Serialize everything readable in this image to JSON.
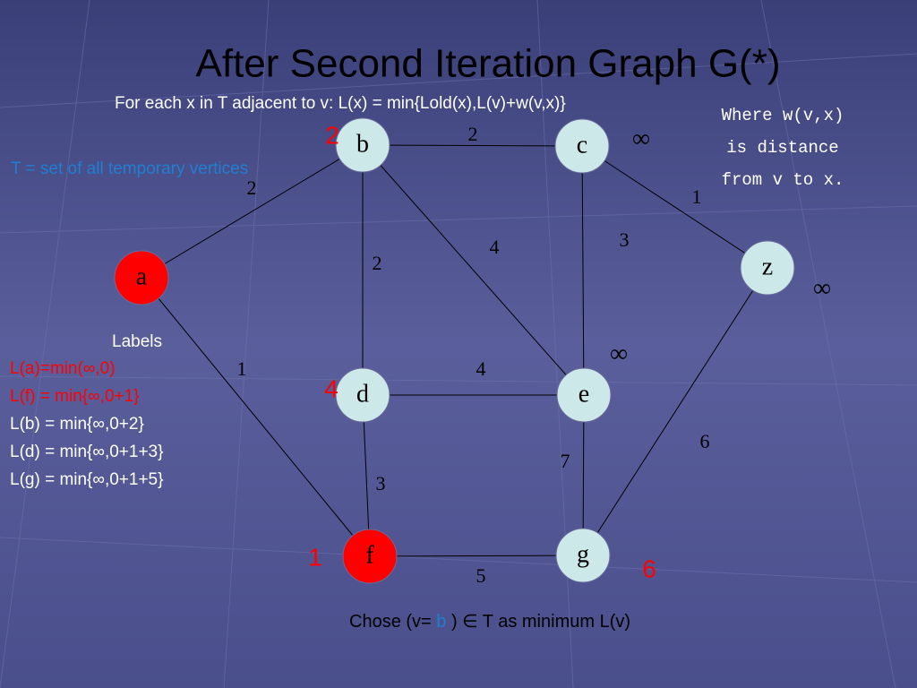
{
  "header": {
    "title": "After Second Iteration Graph G(*)",
    "rule": "For each x in T  adjacent to v: L(x) = min{Lold(x),L(v)+w(v,x)}"
  },
  "note": [
    "Where w(v,x)",
    "is distance",
    "from v to x."
  ],
  "definition": "T = set of all temporary vertices",
  "nodes": [
    {
      "label": "a",
      "color": "#ff0000"
    },
    {
      "label": "b",
      "color": "#cce8e8"
    },
    {
      "label": "c",
      "color": "#cce8e8"
    },
    {
      "label": "z",
      "color": "#cce8e8"
    },
    {
      "label": "d",
      "color": "#cce8e8"
    },
    {
      "label": "e",
      "color": "#cce8e8"
    },
    {
      "label": "f",
      "color": "#ff0000"
    },
    {
      "label": "g",
      "color": "#cce8e8"
    }
  ],
  "edge_weights": [
    "2",
    "2",
    "1",
    "2",
    "4",
    "3",
    "1",
    "4",
    "3",
    "7",
    "6",
    "5"
  ],
  "distance_labels": [
    {
      "text": "2",
      "color": "#ff0000"
    },
    {
      "text": "∞",
      "color": "#000000"
    },
    {
      "text": "∞",
      "color": "#000000"
    },
    {
      "text": "∞",
      "color": "#000000"
    },
    {
      "text": "4",
      "color": "#ff0000"
    },
    {
      "text": "1",
      "color": "#ff0000"
    },
    {
      "text": "6",
      "color": "#ff0000"
    }
  ],
  "labels": {
    "heading": "Labels",
    "lines": [
      {
        "text": "L(a)=min(∞,0)",
        "color": "#ff0000"
      },
      {
        "text": "L(f) = min{∞,0+1}",
        "color": "#ff0000"
      },
      {
        "text": "L(b) = min{∞,0+2}",
        "color": "#ffffff"
      },
      {
        "text": "L(d) = min{∞,0+1+3}",
        "color": "#ffffff"
      },
      {
        "text": "L(g) = min{∞,0+1+5}",
        "color": "#ffffff"
      }
    ]
  },
  "footer": {
    "before": "Chose (v=",
    "vertex": "b",
    "after": ") ∈ T as minimum L(v)"
  }
}
